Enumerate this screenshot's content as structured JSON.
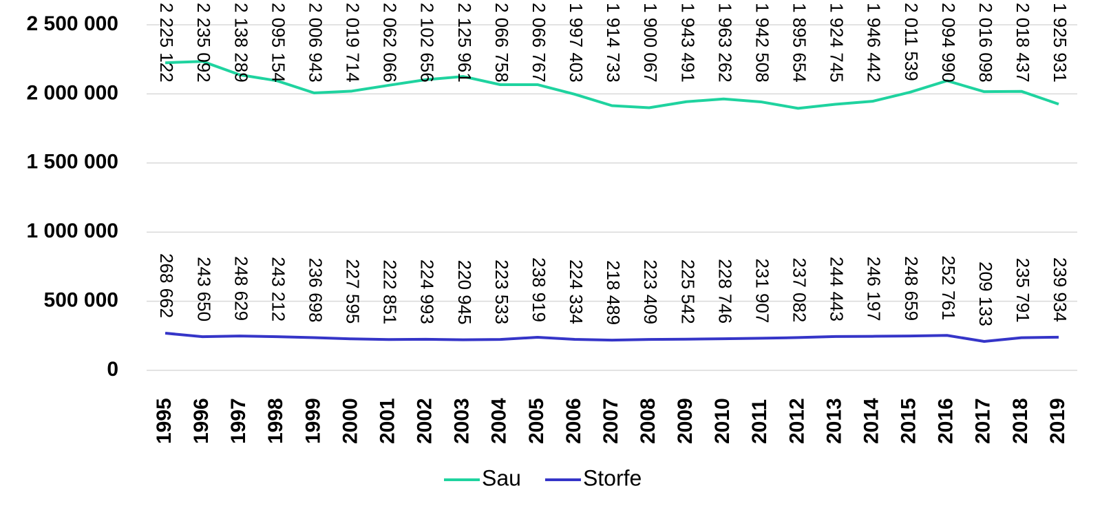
{
  "chart_data": {
    "type": "line",
    "categories": [
      "1995",
      "1996",
      "1997",
      "1998",
      "1999",
      "2000",
      "2001",
      "2002",
      "2003",
      "2004",
      "2005",
      "2006",
      "2007",
      "2008",
      "2009",
      "2010",
      "2011",
      "2012",
      "2013",
      "2014",
      "2015",
      "2016",
      "2017",
      "2018",
      "2019"
    ],
    "series": [
      {
        "name": "Sau",
        "color": "#1fd39f",
        "values": [
          2225122,
          2235092,
          2138289,
          2095154,
          2006943,
          2019714,
          2062066,
          2102656,
          2125961,
          2066758,
          2066767,
          1997403,
          1914733,
          1900067,
          1943491,
          1963262,
          1942508,
          1895654,
          1924745,
          1946442,
          2011539,
          2094990,
          2016098,
          2018437,
          1925931
        ],
        "value_labels": [
          "2 225 122",
          "2 235 092",
          "2 138 289",
          "2 095 154",
          "2 006 943",
          "2 019 714",
          "2 062 066",
          "2 102 656",
          "2 125 961",
          "2 066 758",
          "2 066 767",
          "1 997 403",
          "1 914 733",
          "1 900 067",
          "1 943 491",
          "1 963 262",
          "1 942 508",
          "1 895 654",
          "1 924 745",
          "1 946 442",
          "2 011 539",
          "2 094 990",
          "2 016 098",
          "2 018 437",
          "1 925 931"
        ]
      },
      {
        "name": "Storfe",
        "color": "#3535c8",
        "values": [
          268662,
          243650,
          248629,
          243212,
          236698,
          227595,
          222851,
          224993,
          220945,
          223533,
          238919,
          224334,
          218489,
          223409,
          225542,
          228746,
          231907,
          237082,
          244443,
          246197,
          248659,
          252761,
          209133,
          235791,
          239934
        ],
        "value_labels": [
          "268 662",
          "243 650",
          "248 629",
          "243 212",
          "236 698",
          "227 595",
          "222 851",
          "224 993",
          "220 945",
          "223 533",
          "238 919",
          "224 334",
          "218 489",
          "223 409",
          "225 542",
          "228 746",
          "231 907",
          "237 082",
          "244 443",
          "246 197",
          "248 659",
          "252 761",
          "209 133",
          "235 791",
          "239 934"
        ]
      }
    ],
    "ylim": [
      0,
      2500000
    ],
    "yticks": [
      0,
      {
        "value": 500000,
        "label": "500 000"
      },
      {
        "value": 1000000,
        "label": "1 000 000"
      },
      {
        "value": 1500000,
        "label": "1 500 000"
      },
      {
        "value": 2000000,
        "label": "2 000 000"
      },
      {
        "value": 2500000,
        "label": "2 500 000"
      }
    ],
    "grid": true,
    "legend": "bottom"
  }
}
